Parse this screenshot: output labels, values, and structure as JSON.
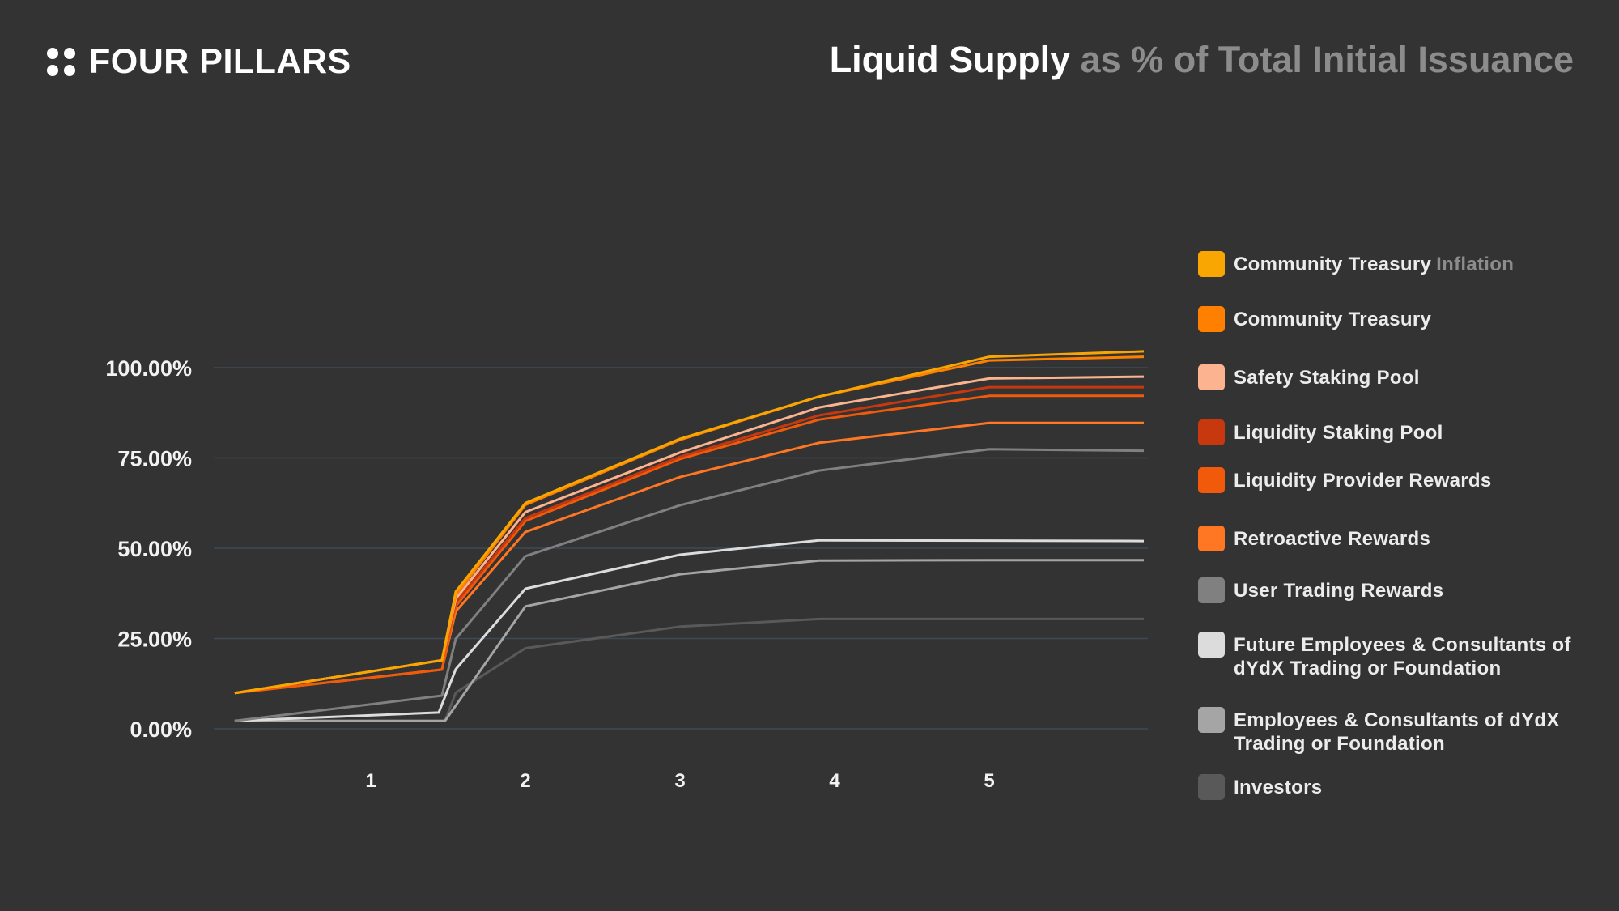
{
  "header": {
    "logo_text": "FOUR PILLARS",
    "title_main": "Liquid Supply",
    "title_rest": "as % of Total Initial Issuance"
  },
  "colors": {
    "background": "#333333",
    "gridline": "#3e4954"
  },
  "chart_data": {
    "type": "line",
    "title": "Liquid Supply as % of Total Initial Issuance",
    "xlabel": "",
    "ylabel": "",
    "x_ticks": [
      "1",
      "2",
      "3",
      "4",
      "5"
    ],
    "x_tick_values": [
      1,
      2,
      3,
      4,
      5
    ],
    "y_ticks": [
      "0.00%",
      "25.00%",
      "50.00%",
      "75.00%",
      "100.00%"
    ],
    "y_tick_values": [
      0,
      25,
      50,
      75,
      100
    ],
    "xlim": [
      0.12,
      6.0
    ],
    "ylim": [
      0,
      100
    ],
    "grid": "horizontal",
    "legend_position": "right",
    "series": [
      {
        "name": "Community Treasury",
        "name_suffix": "Inflation",
        "color": "#F9A602",
        "points": [
          [
            0.12,
            9.9
          ],
          [
            1.46,
            19
          ],
          [
            1.55,
            38
          ],
          [
            2.0,
            62.5
          ],
          [
            3.0,
            80.3
          ],
          [
            3.9,
            92
          ],
          [
            5.0,
            103
          ],
          [
            6.0,
            104.5
          ]
        ]
      },
      {
        "name": "Community Treasury",
        "color": "#FF8000",
        "points": [
          [
            0.12,
            9.9
          ],
          [
            1.46,
            19
          ],
          [
            1.55,
            37
          ],
          [
            2.0,
            62
          ],
          [
            3.0,
            80
          ],
          [
            3.9,
            92
          ],
          [
            5.0,
            102
          ],
          [
            6.0,
            103
          ]
        ]
      },
      {
        "name": "Safety Staking Pool",
        "color": "#FBB48F",
        "points": [
          [
            0.12,
            9.9
          ],
          [
            1.46,
            19
          ],
          [
            1.55,
            36
          ],
          [
            2.0,
            60
          ],
          [
            3.0,
            76.5
          ],
          [
            3.9,
            89
          ],
          [
            5.0,
            97
          ],
          [
            6.0,
            97.5
          ]
        ]
      },
      {
        "name": "Liquidity Staking Pool",
        "color": "#C8380F",
        "points": [
          [
            0.12,
            9.9
          ],
          [
            1.46,
            19
          ],
          [
            1.55,
            35
          ],
          [
            2.0,
            58.3
          ],
          [
            3.0,
            75.3
          ],
          [
            3.9,
            86.8
          ],
          [
            5.0,
            94.6
          ],
          [
            6.0,
            94.6
          ]
        ]
      },
      {
        "name": "Liquidity Provider Rewards",
        "color": "#F05A0A",
        "points": [
          [
            0.12,
            9.9
          ],
          [
            1.46,
            16.4
          ],
          [
            1.55,
            34
          ],
          [
            2.0,
            57.5
          ],
          [
            3.0,
            74.7
          ],
          [
            3.9,
            85.6
          ],
          [
            5.0,
            92.2
          ],
          [
            6.0,
            92.2
          ]
        ]
      },
      {
        "name": "Retroactive Rewards",
        "color": "#FF7722",
        "points": [
          [
            0.12,
            9.9
          ],
          [
            1.46,
            16.4
          ],
          [
            1.55,
            32.5
          ],
          [
            2.0,
            54.5
          ],
          [
            3.0,
            69.7
          ],
          [
            3.9,
            79.2
          ],
          [
            5.0,
            84.7
          ],
          [
            6.0,
            84.7
          ]
        ]
      },
      {
        "name": "User Trading Rewards",
        "color": "#808080",
        "points": [
          [
            0.12,
            2.2
          ],
          [
            1.46,
            9.2
          ],
          [
            1.55,
            24.9
          ],
          [
            2.0,
            47.8
          ],
          [
            3.0,
            61.9
          ],
          [
            3.9,
            71.5
          ],
          [
            5.0,
            77.4
          ],
          [
            6.0,
            77
          ]
        ]
      },
      {
        "name": "Future Employees & Consultants of dYdX Trading or Foundation",
        "color": "#DCDCDC",
        "points": [
          [
            0.12,
            2.2
          ],
          [
            1.44,
            4.5
          ],
          [
            1.55,
            16.5
          ],
          [
            2.0,
            38.8
          ],
          [
            3.0,
            48.2
          ],
          [
            3.9,
            52.2
          ],
          [
            5.0,
            52.1
          ],
          [
            6.0,
            52
          ]
        ]
      },
      {
        "name": "Employees & Consultants of dYdX Trading or Foundation",
        "color": "#A5A5A5",
        "points": [
          [
            0.12,
            2.2
          ],
          [
            1.48,
            2.2
          ],
          [
            2.0,
            33.9
          ],
          [
            3.0,
            42.8
          ],
          [
            3.9,
            46.6
          ],
          [
            5.0,
            46.7
          ],
          [
            6.0,
            46.7
          ]
        ]
      },
      {
        "name": "Investors",
        "color": "#595959",
        "points": [
          [
            0.12,
            2.2
          ],
          [
            1.48,
            2.2
          ],
          [
            1.55,
            10
          ],
          [
            2.0,
            22.3
          ],
          [
            3.0,
            28.3
          ],
          [
            3.9,
            30.4
          ],
          [
            5.0,
            30.4
          ],
          [
            6.0,
            30.4
          ]
        ]
      }
    ]
  }
}
